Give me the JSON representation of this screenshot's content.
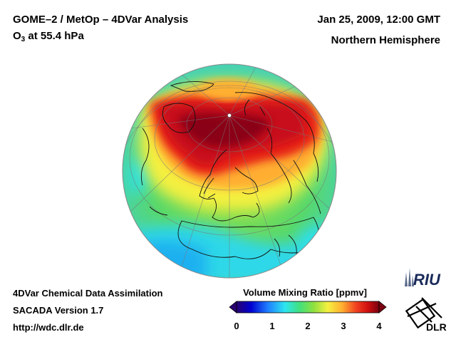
{
  "header": {
    "title": "GOME–2 / MetOp – 4DVar Analysis",
    "species": "O",
    "species_sub": "3",
    "level": "at 55.4 hPa",
    "datetime": "Jan 25, 2009, 12:00 GMT",
    "region": "Northern Hemisphere"
  },
  "footer": {
    "line1": "4DVar Chemical Data Assimilation",
    "line2": "SACADA Version 1.7",
    "line3": "http://wdc.dlr.de"
  },
  "colorbar": {
    "title": "Volume Mixing Ratio [ppmv]",
    "ticks": [
      "0",
      "1",
      "2",
      "3",
      "4"
    ],
    "colors": [
      "#2a0070",
      "#0000d0",
      "#1f7fff",
      "#2ee6f0",
      "#40e080",
      "#8ee040",
      "#f5f040",
      "#ffb030",
      "#f04020",
      "#d01010",
      "#7a0010"
    ]
  },
  "logos": {
    "riu": "RIU",
    "dlr": "DLR"
  }
}
